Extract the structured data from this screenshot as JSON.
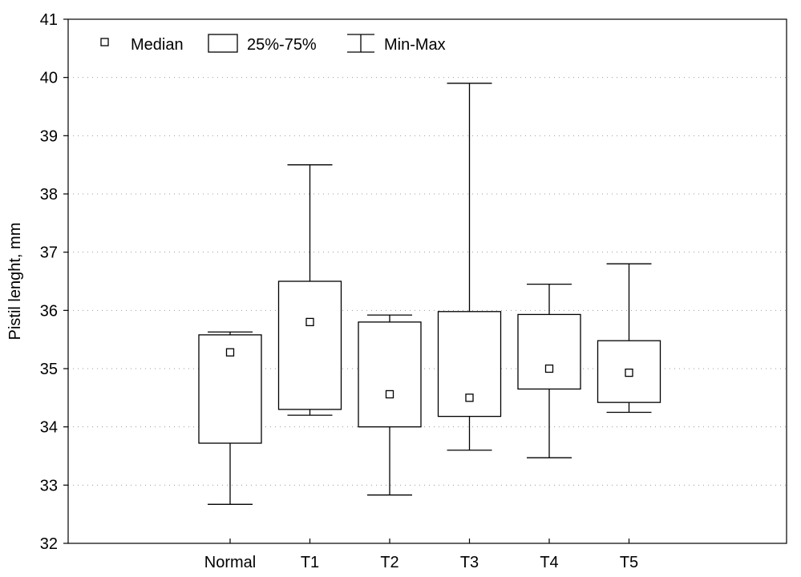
{
  "chart_data": {
    "type": "boxplot",
    "ylabel": "Pistil lenght, mm",
    "ylim": [
      32,
      41
    ],
    "yticks": [
      32,
      33,
      34,
      35,
      36,
      37,
      38,
      39,
      40,
      41
    ],
    "categories": [
      "Normal",
      "T1",
      "T2",
      "T3",
      "T4",
      "T5"
    ],
    "median": [
      35.28,
      35.8,
      34.56,
      34.5,
      35.0,
      34.93
    ],
    "q1": [
      33.72,
      34.3,
      34.0,
      34.18,
      34.65,
      34.42
    ],
    "q3": [
      35.58,
      36.5,
      35.8,
      35.98,
      35.93,
      35.48
    ],
    "min": [
      32.67,
      34.2,
      32.83,
      33.6,
      33.47,
      34.25
    ],
    "max": [
      35.63,
      38.5,
      35.92,
      39.9,
      36.45,
      36.8
    ],
    "legend": {
      "position": "top-left",
      "median_label": "Median",
      "box_label": "25%-75%",
      "whisker_label": "Min-Max"
    },
    "grid": "dotted horizontal"
  }
}
